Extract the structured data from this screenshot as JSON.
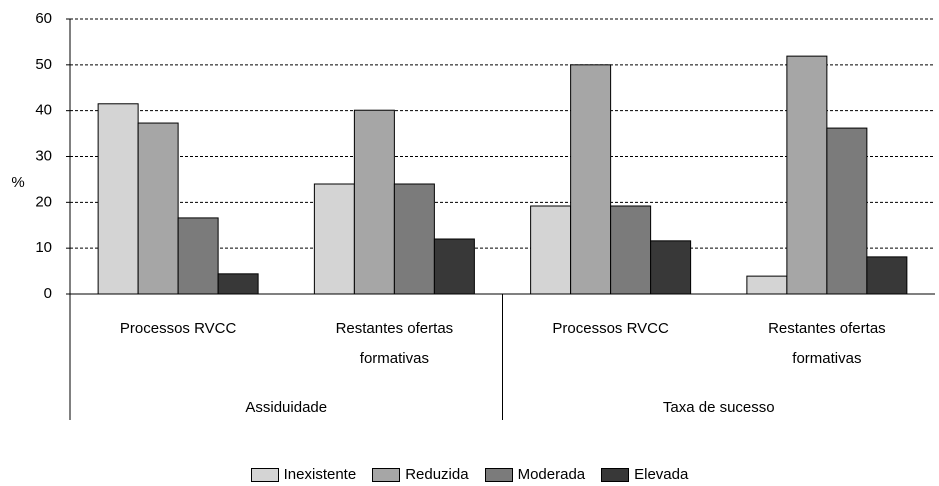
{
  "chart_data": {
    "type": "bar",
    "y_label": "%",
    "categories": [
      "Processos RVCC",
      "Restantes ofertas formativas",
      "Processos RVCC",
      "Restantes ofertas formativas"
    ],
    "groups": [
      "Assiduidade",
      "Taxa de sucesso"
    ],
    "series": [
      {
        "name": "Inexistente",
        "color": "#d4d4d4",
        "values": [
          41.5,
          24,
          19.2,
          3.9
        ]
      },
      {
        "name": "Reduzida",
        "color": "#a6a6a6",
        "values": [
          37.3,
          40.1,
          50,
          51.9
        ]
      },
      {
        "name": "Moderada",
        "color": "#7b7b7b",
        "values": [
          16.6,
          24,
          19.2,
          36.2
        ]
      },
      {
        "name": "Elevada",
        "color": "#383838",
        "values": [
          4.4,
          12,
          11.6,
          8.1
        ]
      }
    ],
    "ylim": [
      0,
      60
    ],
    "yticks": [
      0,
      10,
      20,
      30,
      40,
      50,
      60
    ],
    "grid": true,
    "legend": "bottom"
  }
}
